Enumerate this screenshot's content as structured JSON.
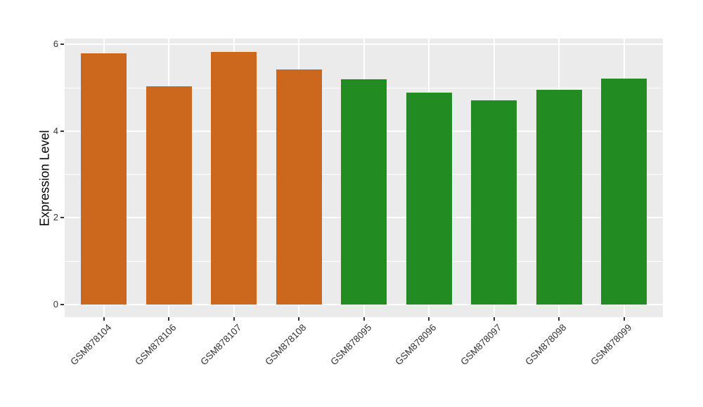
{
  "chart_data": {
    "type": "bar",
    "title": "",
    "ylabel": "Expression Level",
    "xlabel": "",
    "categories": [
      "GSM878104",
      "GSM878106",
      "GSM878107",
      "GSM878108",
      "GSM878095",
      "GSM878096",
      "GSM878097",
      "GSM878098",
      "GSM878099"
    ],
    "values": [
      5.79,
      5.04,
      5.83,
      5.42,
      5.2,
      4.89,
      4.71,
      4.95,
      5.21
    ],
    "bar_colors": [
      "#CC671E",
      "#CC671E",
      "#CC671E",
      "#CC671E",
      "#228B22",
      "#228B22",
      "#228B22",
      "#228B22",
      "#228B22"
    ],
    "yticks": [
      0,
      2,
      4,
      6
    ],
    "minor_yticks": [
      1,
      3,
      5
    ],
    "ylim": [
      -0.3,
      6.13
    ],
    "legend_position": "none",
    "grid": "on",
    "bar_width_fraction": 0.7,
    "colors": {
      "panel_background": "#EBEBEB",
      "grid_color": "#FFFFFF",
      "axis_text_color": "#333333",
      "tick_mark_color": "#333333",
      "figure_background": "#FFFFFF"
    }
  }
}
